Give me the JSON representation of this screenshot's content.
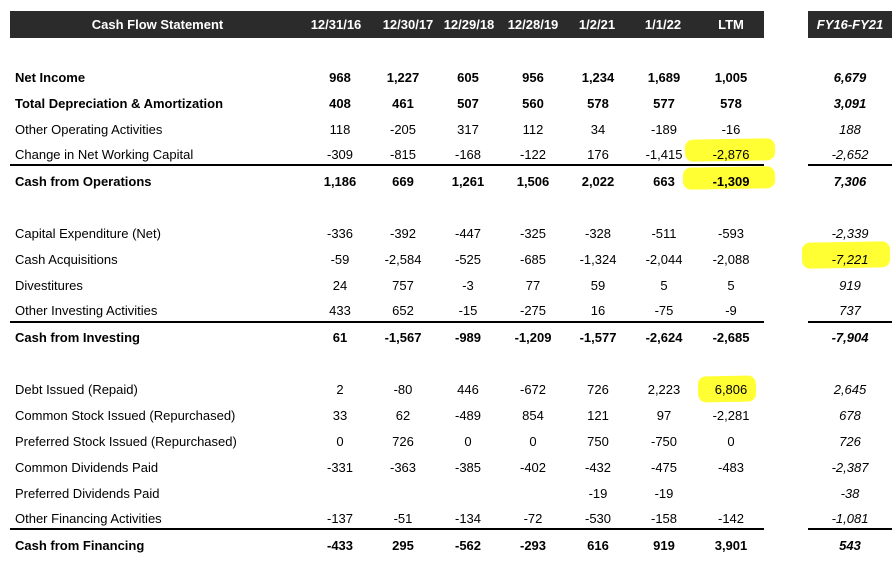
{
  "header": {
    "title": "Cash Flow Statement",
    "columns": [
      "12/31/16",
      "12/30/17",
      "12/29/18",
      "12/28/19",
      "1/2/21",
      "1/1/22",
      "LTM"
    ],
    "fy_title": "FY16-FY21"
  },
  "rows": [
    {
      "label": "Net Income",
      "values": [
        "968",
        "1,227",
        "605",
        "956",
        "1,234",
        "1,689",
        "1,005"
      ],
      "fy": "6,679"
    },
    {
      "label": "Total Depreciation & Amortization",
      "values": [
        "408",
        "461",
        "507",
        "560",
        "578",
        "577",
        "578"
      ],
      "fy": "3,091"
    },
    {
      "label": "Other Operating Activities",
      "values": [
        "118",
        "-205",
        "317",
        "112",
        "34",
        "-189",
        "-16"
      ],
      "fy": "188"
    },
    {
      "label": "Change in Net Working Capital",
      "values": [
        "-309",
        "-815",
        "-168",
        "-122",
        "176",
        "-1,415",
        "-2,876"
      ],
      "fy": "-2,652"
    },
    {
      "label": "Cash from Operations",
      "values": [
        "1,186",
        "669",
        "1,261",
        "1,506",
        "2,022",
        "663",
        "-1,309"
      ],
      "fy": "7,306"
    },
    {
      "label": "Capital Expenditure (Net)",
      "values": [
        "-336",
        "-392",
        "-447",
        "-325",
        "-328",
        "-511",
        "-593"
      ],
      "fy": "-2,339"
    },
    {
      "label": "Cash Acquisitions",
      "values": [
        "-59",
        "-2,584",
        "-525",
        "-685",
        "-1,324",
        "-2,044",
        "-2,088"
      ],
      "fy": "-7,221"
    },
    {
      "label": "Divestitures",
      "values": [
        "24",
        "757",
        "-3",
        "77",
        "59",
        "5",
        "5"
      ],
      "fy": "919"
    },
    {
      "label": "Other Investing Activities",
      "values": [
        "433",
        "652",
        "-15",
        "-275",
        "16",
        "-75",
        "-9"
      ],
      "fy": "737"
    },
    {
      "label": "Cash from Investing",
      "values": [
        "61",
        "-1,567",
        "-989",
        "-1,209",
        "-1,577",
        "-2,624",
        "-2,685"
      ],
      "fy": "-7,904"
    },
    {
      "label": "Debt Issued (Repaid)",
      "values": [
        "2",
        "-80",
        "446",
        "-672",
        "726",
        "2,223",
        "6,806"
      ],
      "fy": "2,645"
    },
    {
      "label": "Common Stock Issued (Repurchased)",
      "values": [
        "33",
        "62",
        "-489",
        "854",
        "121",
        "97",
        "-2,281"
      ],
      "fy": "678"
    },
    {
      "label": "Preferred Stock Issued (Repurchased)",
      "values": [
        "0",
        "726",
        "0",
        "0",
        "750",
        "-750",
        "0"
      ],
      "fy": "726"
    },
    {
      "label": "Common Dividends Paid",
      "values": [
        "-331",
        "-363",
        "-385",
        "-402",
        "-432",
        "-475",
        "-483"
      ],
      "fy": "-2,387"
    },
    {
      "label": "Preferred Dividends Paid",
      "values": [
        "",
        "",
        "",
        "",
        "-19",
        "-19",
        ""
      ],
      "fy": "-38"
    },
    {
      "label": "Other Financing Activities",
      "values": [
        "-137",
        "-51",
        "-134",
        "-72",
        "-530",
        "-158",
        "-142"
      ],
      "fy": "-1,081"
    },
    {
      "label": "Cash from Financing",
      "values": [
        "-433",
        "295",
        "-562",
        "-293",
        "616",
        "919",
        "3,901"
      ],
      "fy": "543"
    }
  ],
  "colors": {
    "header_bg": "#2b2b2b",
    "highlight": "#ffff33"
  }
}
